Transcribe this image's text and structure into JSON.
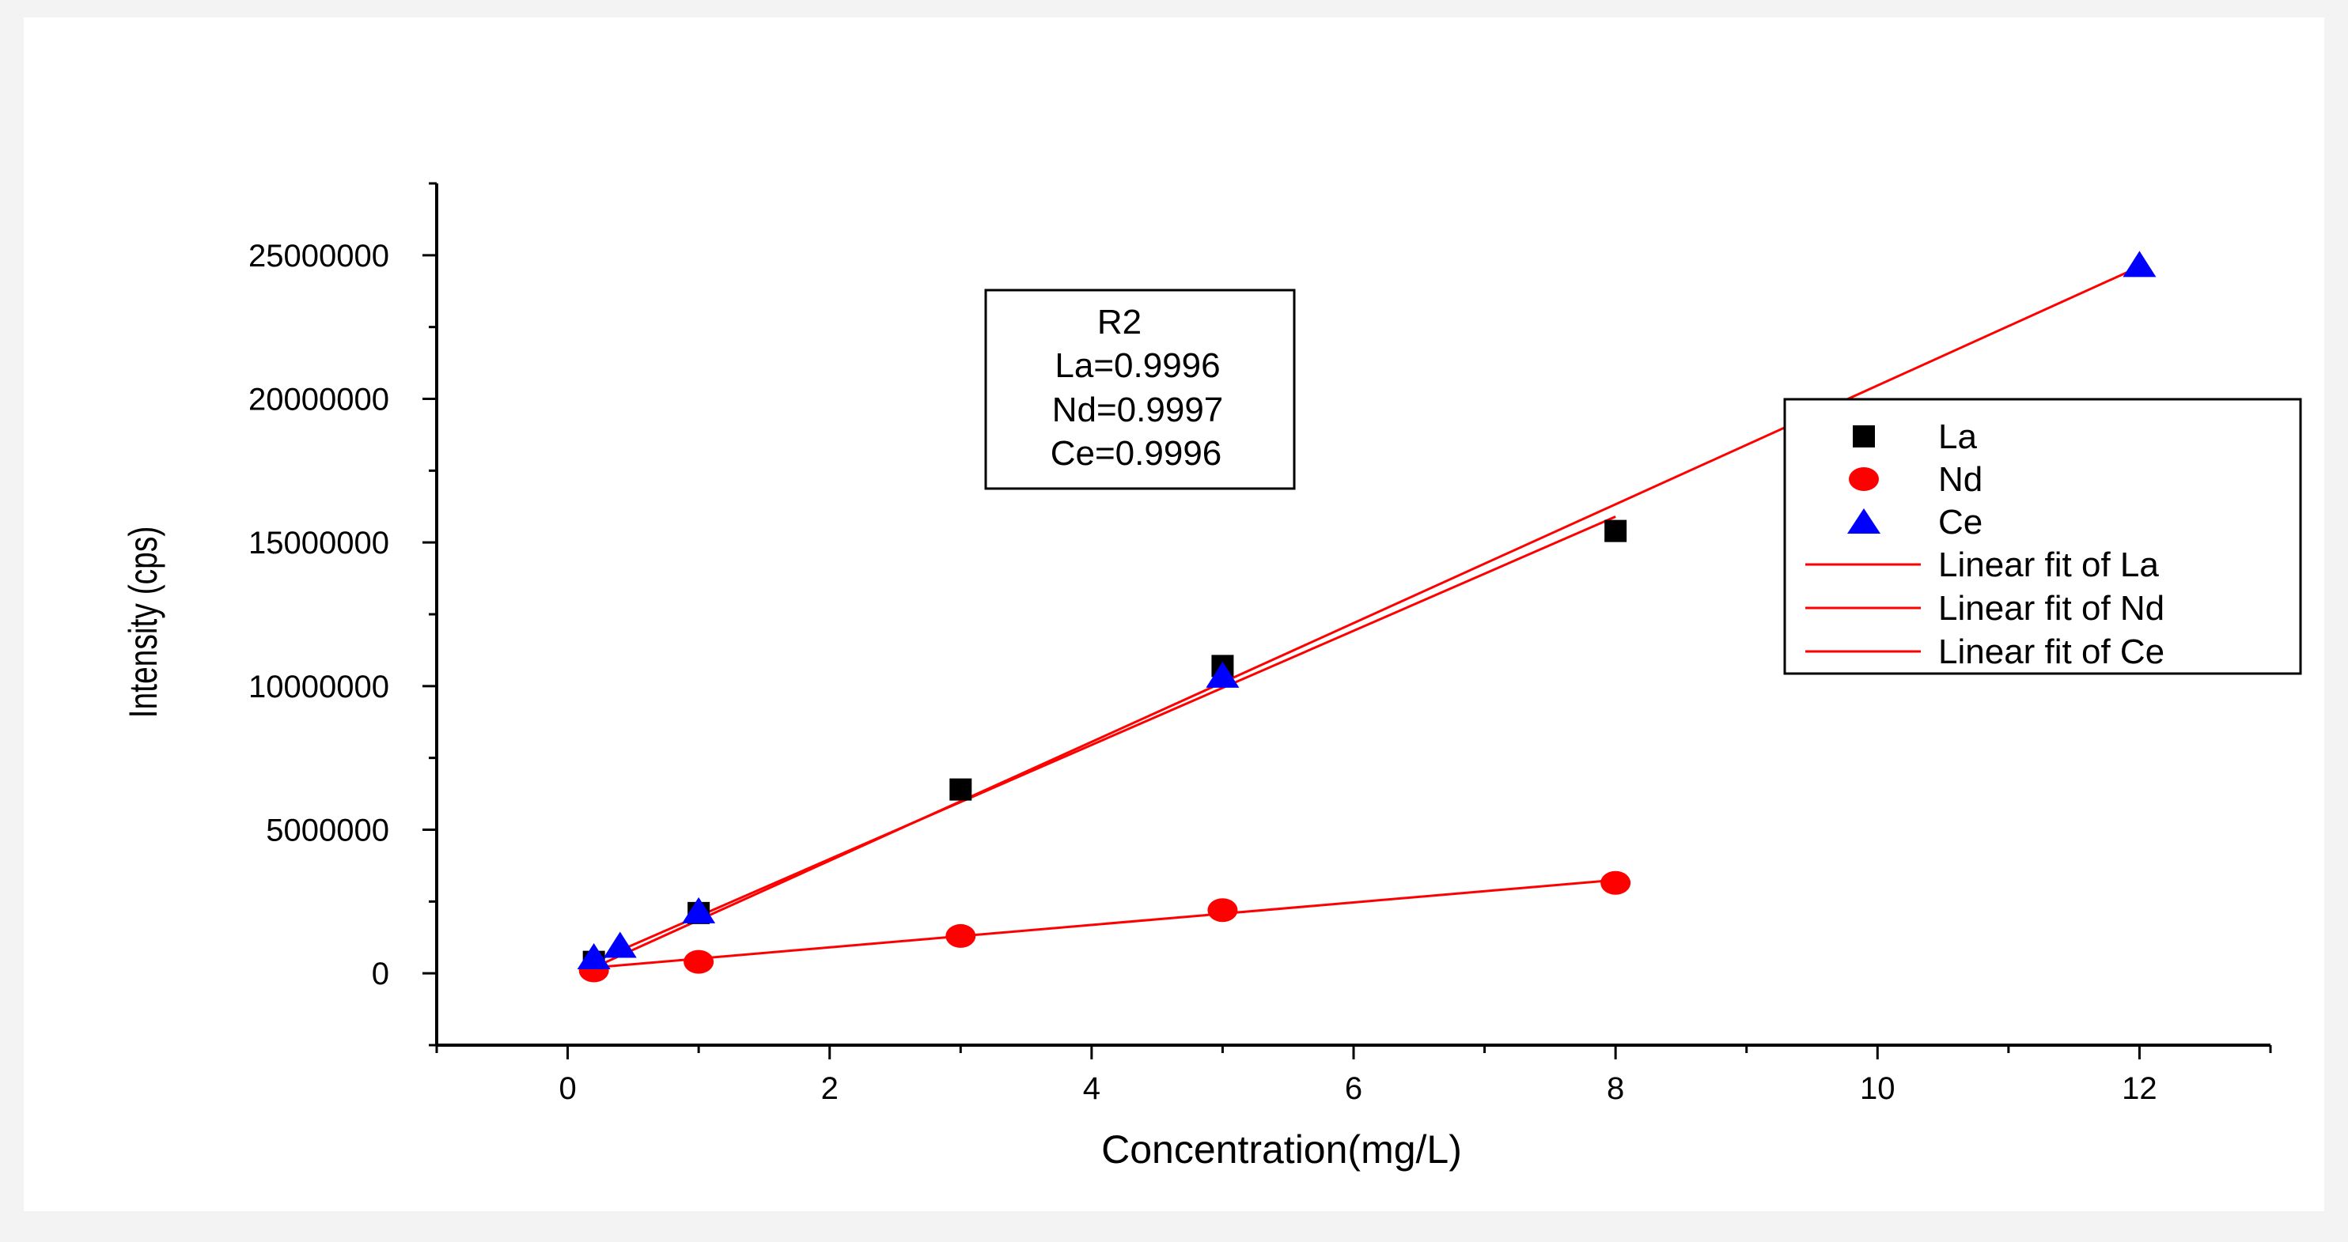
{
  "chart_data": {
    "type": "scatter",
    "title": "",
    "xlabel": "Concentration(mg/L)",
    "ylabel": "Intensity (cps)",
    "xlim": [
      -1,
      13
    ],
    "ylim": [
      -2500000,
      27500000
    ],
    "xticks": [
      0,
      2,
      4,
      6,
      8,
      10,
      12
    ],
    "yticks": [
      0,
      5000000,
      10000000,
      15000000,
      20000000,
      25000000
    ],
    "xtick_labels": [
      "0",
      "2",
      "4",
      "6",
      "8",
      "10",
      "12"
    ],
    "ytick_labels": [
      "0",
      "5000000",
      "10000000",
      "15000000",
      "20000000",
      "25000000"
    ],
    "grid": false,
    "legend_position": "right",
    "series": [
      {
        "name": "La",
        "marker": "square",
        "color": "#000000",
        "x": [
          0.2,
          1,
          3,
          5,
          8
        ],
        "y": [
          400000,
          2100000,
          6400000,
          10700000,
          15400000
        ]
      },
      {
        "name": "Nd",
        "marker": "circle",
        "color": "#ff0000",
        "x": [
          0.2,
          1,
          3,
          5,
          8
        ],
        "y": [
          100000,
          400000,
          1300000,
          2200000,
          3150000
        ]
      },
      {
        "name": "Ce",
        "marker": "triangle",
        "color": "#0000ff",
        "x": [
          0.2,
          0.4,
          1,
          5,
          12
        ],
        "y": [
          500000,
          900000,
          2100000,
          10300000,
          24600000
        ]
      }
    ],
    "fits": [
      {
        "name": "Linear fit of La",
        "color": "#ff0000",
        "x": [
          0.2,
          8
        ],
        "y": [
          400000,
          15900000
        ]
      },
      {
        "name": "Linear fit of Nd",
        "color": "#ff0000",
        "x": [
          0.2,
          8
        ],
        "y": [
          200000,
          3250000
        ]
      },
      {
        "name": "Linear fit of Ce",
        "color": "#ff0000",
        "x": [
          0.2,
          12
        ],
        "y": [
          200000,
          24600000
        ]
      }
    ],
    "annotation": {
      "lines": [
        "R2",
        "La=0.9996",
        "Nd=0.9997",
        "Ce=0.9996"
      ]
    }
  }
}
